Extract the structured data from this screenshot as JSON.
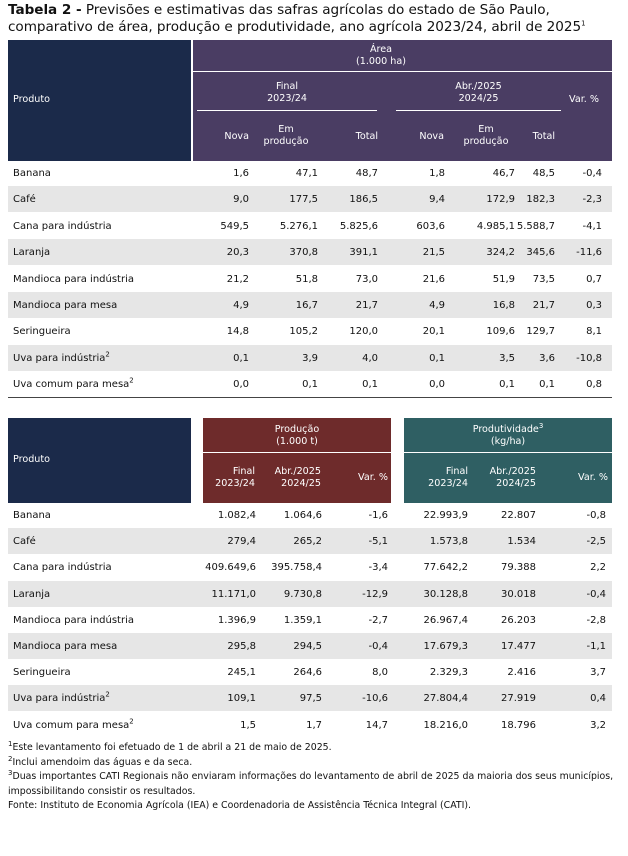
{
  "title": {
    "label": "Tabela 2 -",
    "text": "Previsões e estimativas das safras agrícolas do estado de São Paulo, comparativo de área, produção e produtividade, ano agrícola 2023/24, abril de 2025",
    "sup": "1"
  },
  "colors": {
    "navy": "#1b2a4a",
    "purple": "#4a3d63",
    "maroon": "#6e2b2b",
    "teal": "#2f5f63",
    "stripe": "#e6e6e6"
  },
  "table1": {
    "produto": "Produto",
    "area_title": "Área",
    "area_unit": "(1.000 ha)",
    "final_label": "Final",
    "final_period": "2023/24",
    "abr_label": "Abr./2025",
    "abr_period": "2024/25",
    "var": "Var. %",
    "nova": "Nova",
    "em": "Em",
    "producao": "produção",
    "total": "Total",
    "rows": [
      {
        "name": "Banana",
        "sup": "",
        "v": [
          "1,6",
          "47,1",
          "48,7",
          "1,8",
          "46,7",
          "48,5",
          "-0,4"
        ]
      },
      {
        "name": "Café",
        "sup": "",
        "v": [
          "9,0",
          "177,5",
          "186,5",
          "9,4",
          "172,9",
          "182,3",
          "-2,3"
        ]
      },
      {
        "name": "Cana para indústria",
        "sup": "",
        "v": [
          "549,5",
          "5.276,1",
          "5.825,6",
          "603,6",
          "4.985,1",
          "5.588,7",
          "-4,1"
        ]
      },
      {
        "name": "Laranja",
        "sup": "",
        "v": [
          "20,3",
          "370,8",
          "391,1",
          "21,5",
          "324,2",
          "345,6",
          "-11,6"
        ]
      },
      {
        "name": "Mandioca para indústria",
        "sup": "",
        "v": [
          "21,2",
          "51,8",
          "73,0",
          "21,6",
          "51,9",
          "73,5",
          "0,7"
        ]
      },
      {
        "name": "Mandioca para mesa",
        "sup": "",
        "v": [
          "4,9",
          "16,7",
          "21,7",
          "4,9",
          "16,8",
          "21,7",
          "0,3"
        ]
      },
      {
        "name": "Seringueira",
        "sup": "",
        "v": [
          "14,8",
          "105,2",
          "120,0",
          "20,1",
          "109,6",
          "129,7",
          "8,1"
        ]
      },
      {
        "name": "Uva para indústria",
        "sup": "2",
        "v": [
          "0,1",
          "3,9",
          "4,0",
          "0,1",
          "3,5",
          "3,6",
          "-10,8"
        ]
      },
      {
        "name": "Uva comum para mesa",
        "sup": "2",
        "v": [
          "0,0",
          "0,1",
          "0,1",
          "0,0",
          "0,1",
          "0,1",
          "0,8"
        ]
      }
    ]
  },
  "table2": {
    "produto": "Produto",
    "prod_title": "Produção",
    "prod_unit": "(1.000 t)",
    "prodv_title": "Produtividade",
    "prodv_sup": "3",
    "prodv_unit": "(kg/ha)",
    "final_label": "Final",
    "final_period": "2023/24",
    "abr_label": "Abr./2025",
    "abr_period": "2024/25",
    "var": "Var. %",
    "rows": [
      {
        "name": "Banana",
        "sup": "",
        "v": [
          "1.082,4",
          "1.064,6",
          "-1,6",
          "22.993,9",
          "22.807",
          "-0,8"
        ]
      },
      {
        "name": "Café",
        "sup": "",
        "v": [
          "279,4",
          "265,2",
          "-5,1",
          "1.573,8",
          "1.534",
          "-2,5"
        ]
      },
      {
        "name": "Cana para indústria",
        "sup": "",
        "v": [
          "409.649,6",
          "395.758,4",
          "-3,4",
          "77.642,2",
          "79.388",
          "2,2"
        ]
      },
      {
        "name": "Laranja",
        "sup": "",
        "v": [
          "11.171,0",
          "9.730,8",
          "-12,9",
          "30.128,8",
          "30.018",
          "-0,4"
        ]
      },
      {
        "name": "Mandioca para indústria",
        "sup": "",
        "v": [
          "1.396,9",
          "1.359,1",
          "-2,7",
          "26.967,4",
          "26.203",
          "-2,8"
        ]
      },
      {
        "name": "Mandioca para mesa",
        "sup": "",
        "v": [
          "295,8",
          "294,5",
          "-0,4",
          "17.679,3",
          "17.477",
          "-1,1"
        ]
      },
      {
        "name": "Seringueira",
        "sup": "",
        "v": [
          "245,1",
          "264,6",
          "8,0",
          "2.329,3",
          "2.416",
          "3,7"
        ]
      },
      {
        "name": "Uva para indústria",
        "sup": "2",
        "v": [
          "109,1",
          "97,5",
          "-10,6",
          "27.804,4",
          "27.919",
          "0,4"
        ]
      },
      {
        "name": "Uva comum para mesa",
        "sup": "2",
        "v": [
          "1,5",
          "1,7",
          "14,7",
          "18.216,0",
          "18.796",
          "3,2"
        ]
      }
    ]
  },
  "footnotes": [
    {
      "sup": "1",
      "text": "Este levantamento foi efetuado de 1 de abril a 21 de maio de 2025."
    },
    {
      "sup": "2",
      "text": "Inclui amendoim das águas e da seca."
    },
    {
      "sup": "3",
      "text": "Duas importantes CATI Regionais não enviaram informações do levantamento de abril de 2025 da maioria dos seus municípios,"
    },
    {
      "sup": "",
      "text": "impossibilitando consistir os resultados."
    },
    {
      "sup": "",
      "text": "Fonte: Instituto de Economia Agrícola (IEA) e Coordenadoria de Assistência Técnica Integral (CATI)."
    }
  ]
}
